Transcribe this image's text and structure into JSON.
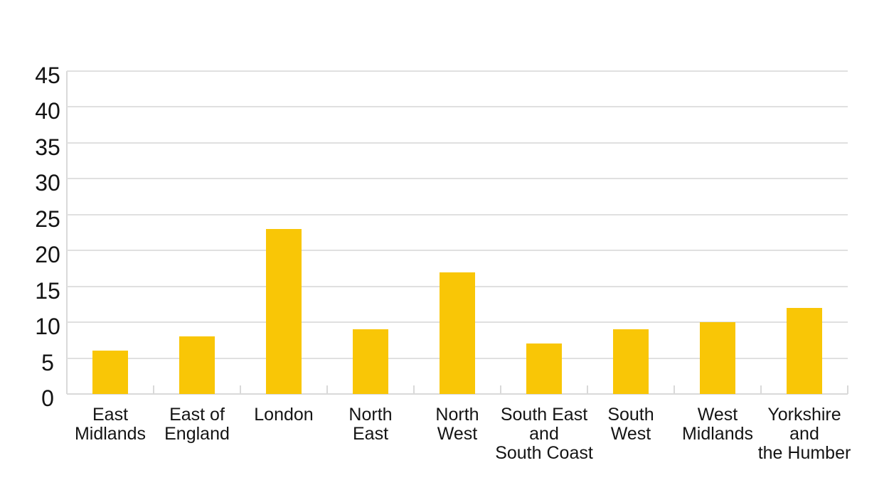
{
  "chart_data": {
    "type": "bar",
    "title": "",
    "xlabel": "",
    "ylabel": "",
    "categories": [
      "East Midlands",
      "East of England",
      "London",
      "North East",
      "North West",
      "South East and South Coast",
      "South West",
      "West Midlands",
      "Yorkshire and the Humber"
    ],
    "category_label_lines": [
      [
        "East",
        "Midlands"
      ],
      [
        "East of",
        "England"
      ],
      [
        "London"
      ],
      [
        "North",
        "East"
      ],
      [
        "North",
        "West"
      ],
      [
        "South East",
        "and",
        "South Coast"
      ],
      [
        "South",
        "West"
      ],
      [
        "West",
        "Midlands"
      ],
      [
        "Yorkshire",
        "and",
        "the Humber"
      ]
    ],
    "values": [
      6,
      8,
      23,
      9,
      17,
      7,
      9,
      10,
      12
    ],
    "ylim": [
      0,
      45
    ],
    "yticks": [
      0,
      5,
      10,
      15,
      20,
      25,
      30,
      35,
      40,
      45
    ],
    "grid": true,
    "legend": "none",
    "colors": {
      "bar": "#F9C606",
      "gridline": "#E0E0E0",
      "axis": "#D9D9D9",
      "text": "#141414",
      "background": "#FFFFFF"
    }
  }
}
